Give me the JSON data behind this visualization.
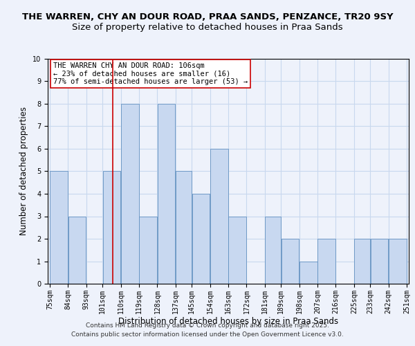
{
  "title_line1": "THE WARREN, CHY AN DOUR ROAD, PRAA SANDS, PENZANCE, TR20 9SY",
  "title_line2": "Size of property relative to detached houses in Praa Sands",
  "xlabel": "Distribution of detached houses by size in Praa Sands",
  "ylabel": "Number of detached properties",
  "bin_edges": [
    75,
    84,
    93,
    101,
    110,
    119,
    128,
    137,
    145,
    154,
    163,
    172,
    181,
    189,
    198,
    207,
    216,
    225,
    233,
    242,
    251
  ],
  "bar_heights": [
    5,
    3,
    0,
    5,
    8,
    3,
    8,
    5,
    4,
    6,
    3,
    0,
    3,
    2,
    1,
    2,
    0,
    2,
    2,
    2
  ],
  "bar_color": "#c8d8f0",
  "bar_edgecolor": "#6090c0",
  "grid_color": "#c8d8ee",
  "vline_x": 106,
  "vline_color": "#cc0000",
  "annotation_line1": "THE WARREN CHY AN DOUR ROAD: 106sqm",
  "annotation_line2": "← 23% of detached houses are smaller (16)",
  "annotation_line3": "77% of semi-detached houses are larger (53) →",
  "ylim": [
    0,
    10
  ],
  "yticks": [
    0,
    1,
    2,
    3,
    4,
    5,
    6,
    7,
    8,
    9,
    10
  ],
  "footer_line1": "Contains HM Land Registry data © Crown copyright and database right 2025.",
  "footer_line2": "Contains public sector information licensed under the Open Government Licence v3.0.",
  "bg_color": "#eef2fb",
  "title_fontsize": 9.5,
  "subtitle_fontsize": 9.5,
  "axis_label_fontsize": 8.5,
  "tick_fontsize": 7,
  "annotation_fontsize": 7.5,
  "footer_fontsize": 6.5
}
